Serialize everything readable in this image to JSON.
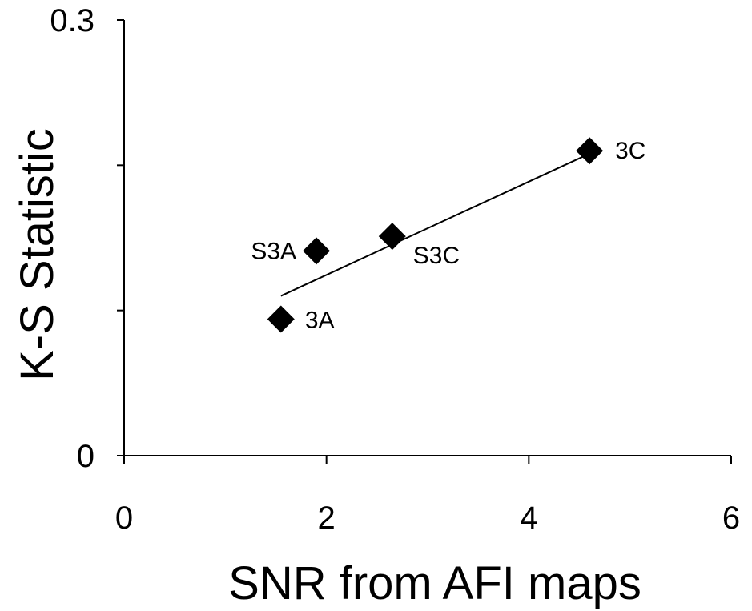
{
  "chart_data": {
    "type": "scatter",
    "title": "",
    "xlabel": "SNR from AFI maps",
    "ylabel": "K-S Statistic",
    "xlim": [
      0,
      6
    ],
    "ylim": [
      0,
      0.3
    ],
    "x_ticks": [
      0,
      2,
      4,
      6
    ],
    "x_tick_labels": [
      "0",
      "2",
      "4",
      "6"
    ],
    "y_ticks": [
      0,
      0.1,
      0.2,
      0.3
    ],
    "y_tick_labels": [
      "0",
      "",
      "",
      "0.3"
    ],
    "grid": false,
    "series": [
      {
        "marker": "diamond",
        "color": "#000000",
        "points": [
          {
            "label": "3A",
            "x": 1.55,
            "y": 0.094
          },
          {
            "label": "S3A",
            "x": 1.9,
            "y": 0.141
          },
          {
            "label": "S3C",
            "x": 2.65,
            "y": 0.151
          },
          {
            "label": "3C",
            "x": 4.6,
            "y": 0.21
          }
        ]
      }
    ],
    "trendline": {
      "type": "linear",
      "from": {
        "x": 1.55,
        "y": 0.11
      },
      "to": {
        "x": 4.6,
        "y": 0.208
      }
    }
  }
}
